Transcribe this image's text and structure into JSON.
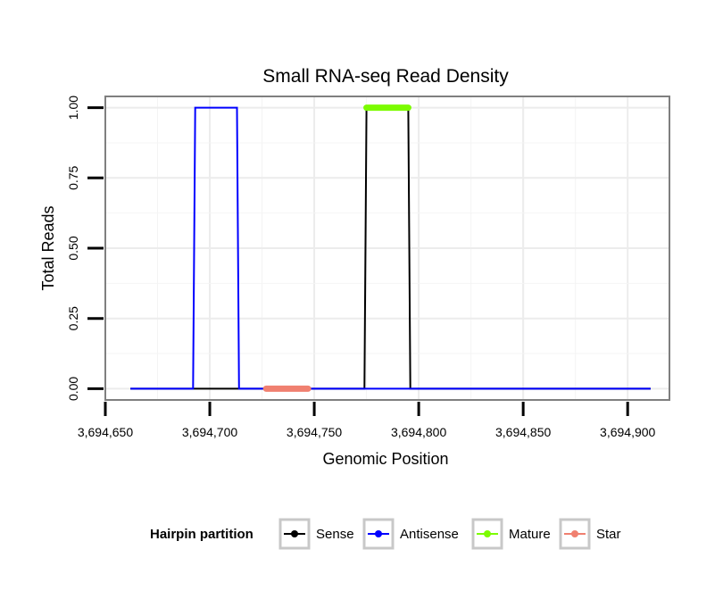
{
  "chart_data": {
    "type": "line",
    "title": "Small RNA-seq Read Density",
    "xlabel": "Genomic Position",
    "ylabel": "Total Reads",
    "xlim": [
      3694650,
      3694920
    ],
    "ylim": [
      -0.04,
      1.04
    ],
    "x_ticks": [
      3694650,
      3694700,
      3694750,
      3694800,
      3694850,
      3694900
    ],
    "x_tick_labels": [
      "3,694,650",
      "3,694,700",
      "3,694,750",
      "3,694,800",
      "3,694,850",
      "3,694,900"
    ],
    "y_ticks": [
      0,
      0.25,
      0.5,
      0.75,
      1
    ],
    "y_tick_labels": [
      "0.00",
      "0.25",
      "0.50",
      "0.75",
      "1.00"
    ],
    "grid": true,
    "legend_title": "Hairpin partition",
    "legend_position": "bottom",
    "series": [
      {
        "name": "Sense",
        "color": "#000000",
        "width": 2,
        "x": [
          3694662,
          3694774,
          3694775,
          3694795,
          3694796,
          3694911
        ],
        "y": [
          0,
          0,
          1,
          1,
          0,
          0
        ]
      },
      {
        "name": "Antisense",
        "color": "#0000ff",
        "width": 2,
        "x": [
          3694662,
          3694692,
          3694693,
          3694713,
          3694714,
          3694911
        ],
        "y": [
          0,
          0,
          1,
          1,
          0,
          0
        ]
      },
      {
        "name": "Mature",
        "color": "#7cfc00",
        "width": 7,
        "x": [
          3694775,
          3694795
        ],
        "y": [
          1,
          1
        ]
      },
      {
        "name": "Star",
        "color": "#f08070",
        "width": 7,
        "x": [
          3694727,
          3694747
        ],
        "y": [
          0,
          0
        ]
      }
    ]
  }
}
